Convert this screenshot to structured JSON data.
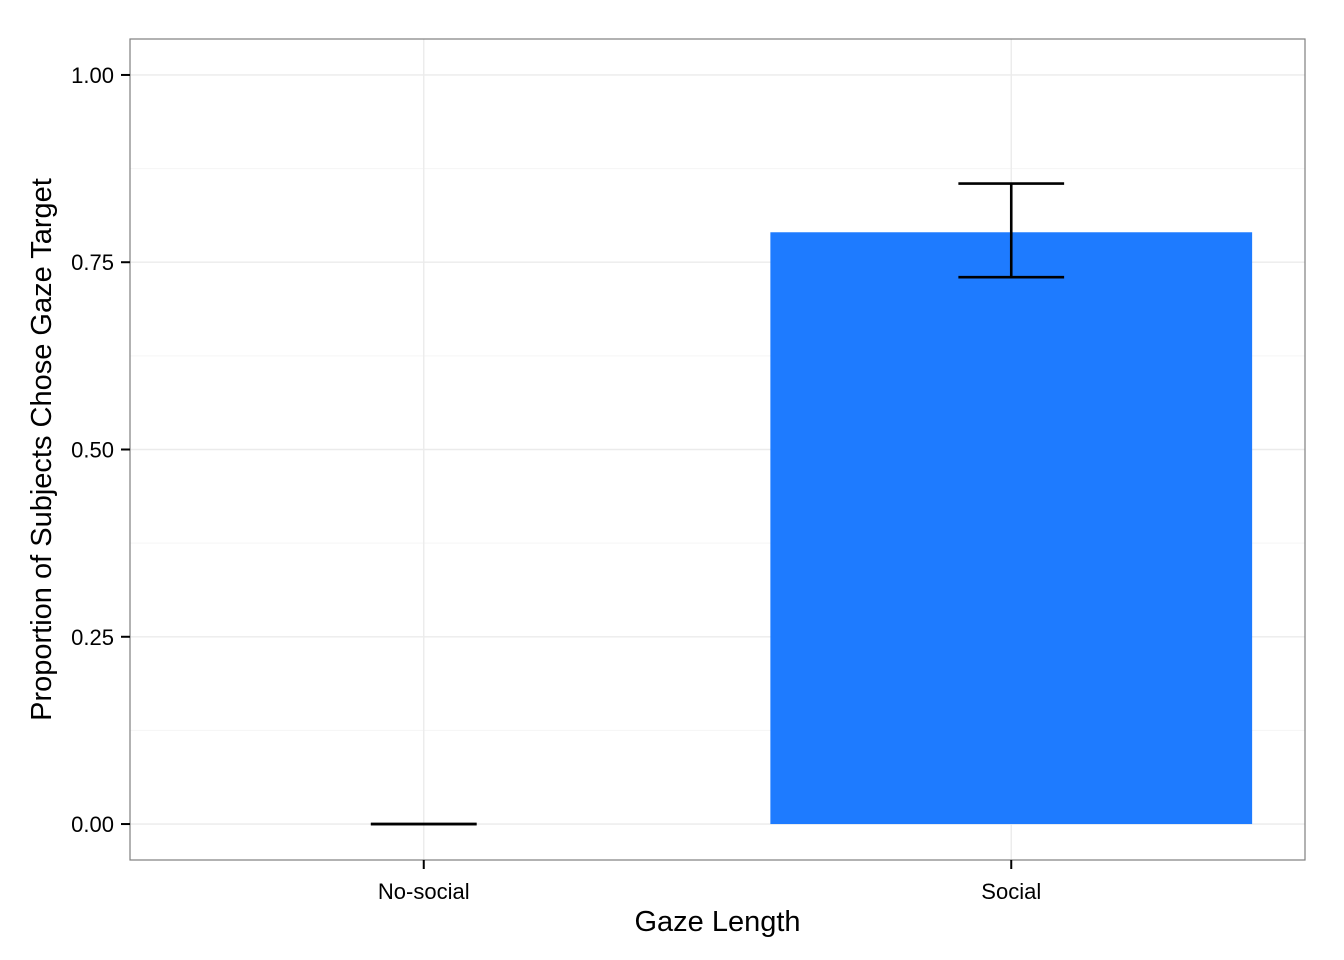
{
  "chart_data": {
    "type": "bar",
    "title": "",
    "xlabel": "Gaze Length",
    "ylabel": "Proportion of Subjects Chose Gaze Target",
    "categories": [
      "No-social",
      "Social"
    ],
    "values": [
      0.0,
      0.79
    ],
    "error_bars": [
      {
        "lower": 0.0,
        "upper": 0.0
      },
      {
        "lower": 0.73,
        "upper": 0.855
      }
    ],
    "ylim": [
      -0.048,
      1.048
    ],
    "yticks": [
      0.0,
      0.25,
      0.5,
      0.75,
      1.0
    ],
    "ytick_labels": [
      "0.00",
      "0.25",
      "0.50",
      "0.75",
      "1.00"
    ],
    "grid": true,
    "legend": "none",
    "colors": {
      "bar": "#1E7BFF",
      "error_bar": "#000000",
      "grid_major": "#EBEBEB",
      "grid_minor": "#F5F5F5",
      "panel_border": "#7F7F7F"
    }
  }
}
